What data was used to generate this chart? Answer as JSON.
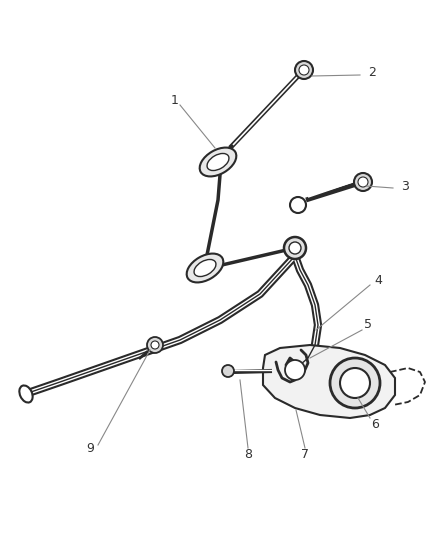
{
  "bg_color": "#ffffff",
  "line_color": "#2a2a2a",
  "light_line": "#555555",
  "leader_color": "#888888",
  "figsize": [
    4.38,
    5.33
  ],
  "dpi": 100,
  "label_fontsize": 9
}
